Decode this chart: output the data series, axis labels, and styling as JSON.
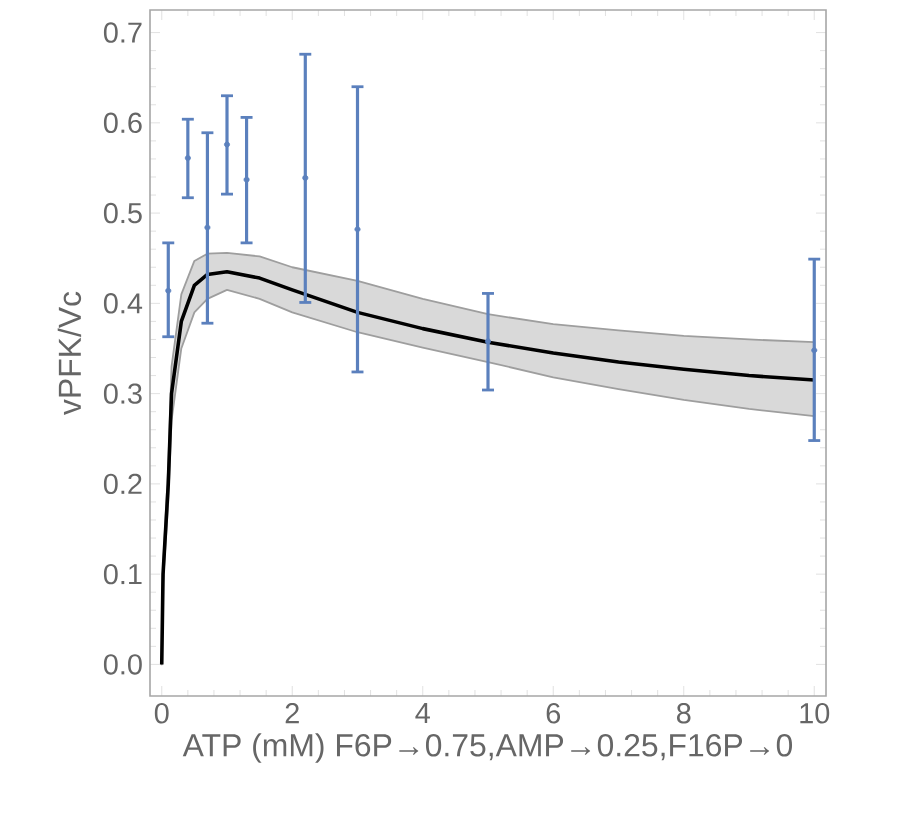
{
  "chart_data": {
    "type": "line",
    "xlabel": "ATP (mM) F6P→0.75,AMP→0.25,F16P→0",
    "ylabel": "vPFK/Vc",
    "xlim": [
      -0.18,
      10.18
    ],
    "ylim": [
      -0.035,
      0.725
    ],
    "xticks": [
      0,
      2,
      4,
      6,
      8,
      10
    ],
    "yticks": [
      {
        "value": 0,
        "label": "0.0"
      },
      0.1,
      0.2,
      0.3,
      0.4,
      0.5,
      0.6,
      0.7
    ],
    "grid": false,
    "series": [
      {
        "color": "#000000",
        "line_style": "solid",
        "marker": "none",
        "x": [
          0,
          0.02,
          0.1,
          0.15,
          0.3,
          0.5,
          0.7,
          1,
          1.5,
          2,
          3,
          4,
          5,
          6,
          7,
          8,
          9,
          10
        ],
        "values": [
          0,
          0.1,
          0.2,
          0.3,
          0.38,
          0.42,
          0.432,
          0.435,
          0.428,
          0.415,
          0.39,
          0.372,
          0.357,
          0.345,
          0.335,
          0.327,
          0.32,
          0.315
        ],
        "lower": [
          0,
          0.09,
          0.18,
          0.27,
          0.35,
          0.39,
          0.405,
          0.415,
          0.405,
          0.39,
          0.368,
          0.351,
          0.335,
          0.318,
          0.305,
          0.293,
          0.283,
          0.275
        ],
        "upper": [
          0,
          0.11,
          0.22,
          0.33,
          0.41,
          0.447,
          0.455,
          0.456,
          0.452,
          0.44,
          0.425,
          0.405,
          0.388,
          0.377,
          0.37,
          0.364,
          0.36,
          0.357
        ]
      },
      {
        "type": "scatter",
        "color": "#5b80bd",
        "marker": "circle",
        "x": [
          0.1,
          0.4,
          0.7,
          1.0,
          1.3,
          2.2,
          3.0,
          5.0,
          10.0
        ],
        "values": [
          0.414,
          0.561,
          0.484,
          0.576,
          0.537,
          0.539,
          0.482,
          0.358,
          0.348
        ],
        "errors": [
          [
            0.363,
            0.467
          ],
          [
            0.517,
            0.604
          ],
          [
            0.378,
            0.589
          ],
          [
            0.521,
            0.63
          ],
          [
            0.467,
            0.606
          ],
          [
            0.401,
            0.676
          ],
          [
            0.324,
            0.64
          ],
          [
            0.304,
            0.411
          ],
          [
            0.248,
            0.449
          ]
        ]
      }
    ]
  }
}
